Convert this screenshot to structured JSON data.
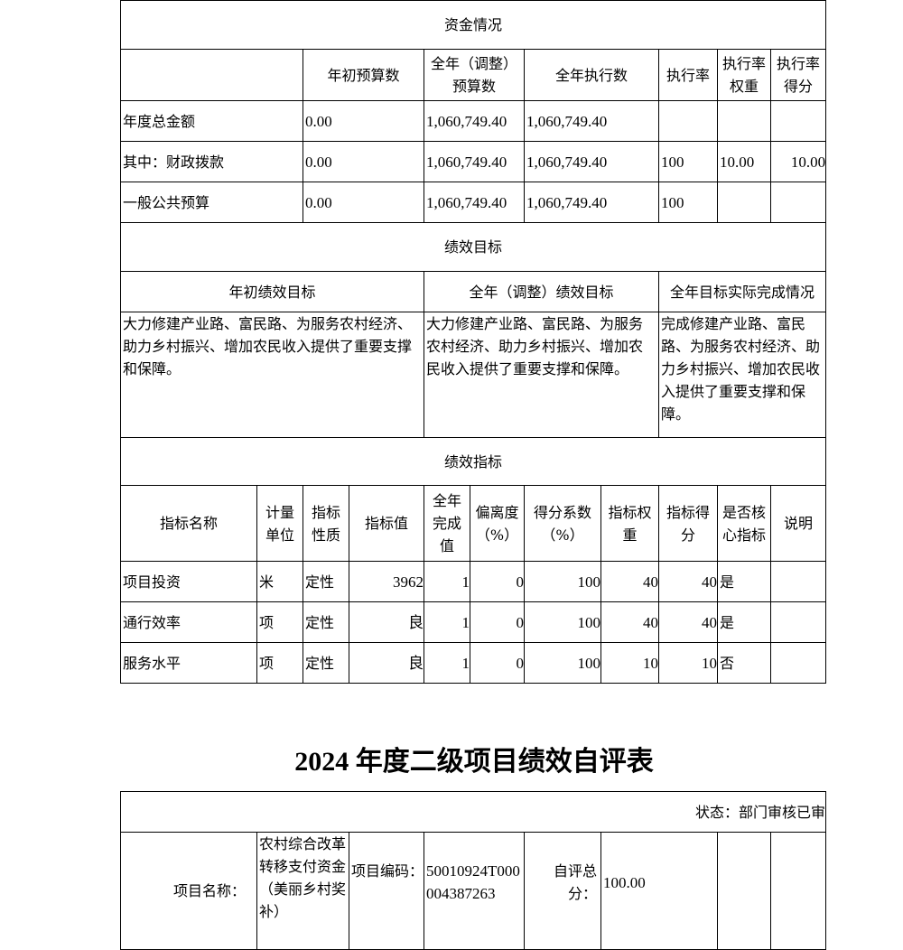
{
  "funds": {
    "section_title": "资金情况",
    "headers": [
      "",
      "年初预算数",
      "全年（调整）预算数",
      "全年执行数",
      "执行率",
      "执行率权重",
      "执行率得分"
    ],
    "rows": [
      [
        "年度总金额",
        "0.00",
        "1,060,749.40",
        "1,060,749.40",
        "",
        "",
        ""
      ],
      [
        "其中：财政拨款",
        "0.00",
        "1,060,749.40",
        "1,060,749.40",
        "100",
        "10.00",
        "10.00"
      ],
      [
        "一般公共预算",
        "0.00",
        "1,060,749.40",
        "1,060,749.40",
        "100",
        "",
        ""
      ]
    ]
  },
  "goals": {
    "section_title": "绩效目标",
    "headers": [
      "年初绩效目标",
      "全年（调整）绩效目标",
      "全年目标实际完成情况"
    ],
    "values": [
      "大力修建产业路、富民路、为服务农村经济、助力乡村振兴、增加农民收入提供了重要支撑和保障。",
      "大力修建产业路、富民路、为服务农村经济、助力乡村振兴、增加农民收入提供了重要支撑和保障。",
      "完成修建产业路、富民路、为服务农村经济、助力乡村振兴、增加农民收入提供了重要支撑和保障。"
    ]
  },
  "indicators": {
    "section_title": "绩效指标",
    "headers": [
      "指标名称",
      "计量单位",
      "指标性质",
      "指标值",
      "全年完成值",
      "偏离度（%）",
      "得分系数（%）",
      "指标权重",
      "指标得分",
      "是否核心指标",
      "说明"
    ],
    "rows": [
      [
        "项目投资",
        "米",
        "定性",
        "3962",
        "1",
        "0",
        "100",
        "40",
        "40",
        "是",
        ""
      ],
      [
        "通行效率",
        "项",
        "定性",
        "良",
        "1",
        "0",
        "100",
        "40",
        "40",
        "是",
        ""
      ],
      [
        "服务水平",
        "项",
        "定性",
        "良",
        "1",
        "0",
        "100",
        "10",
        "10",
        "否",
        ""
      ]
    ]
  },
  "second": {
    "title": "2024 年度二级项目绩效自评表",
    "status": "状态：部门审核已审",
    "name_label": "项目名称：",
    "name_value": "农村综合改革转移支付资金（美丽乡村奖补）",
    "code_label": "项目编码：",
    "code_value": "50010924T000004387263",
    "score_label": "自评总分：",
    "score_value": "100.00"
  }
}
